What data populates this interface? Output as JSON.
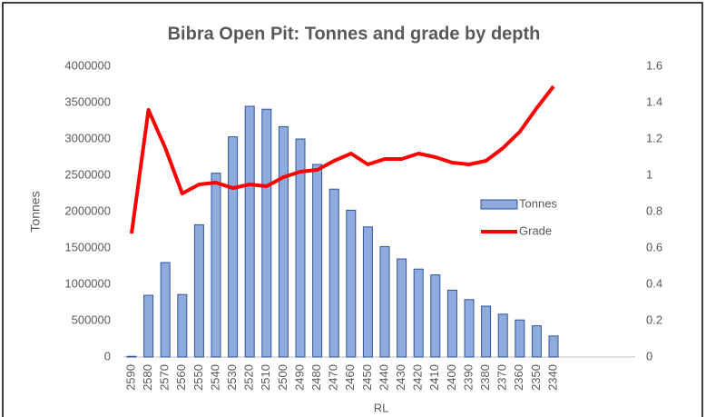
{
  "chart_data": {
    "type": "bar-line",
    "title": "Bibra Open Pit: Tonnes and grade by depth",
    "x_label": "RL",
    "y_label": "Tonnes",
    "categories": [
      "2590",
      "2580",
      "2570",
      "2560",
      "2550",
      "2540",
      "2530",
      "2520",
      "2510",
      "2500",
      "2490",
      "2480",
      "2470",
      "2460",
      "2450",
      "2440",
      "2430",
      "2420",
      "2410",
      "2400",
      "2390",
      "2380",
      "2370",
      "2360",
      "2350",
      "2340"
    ],
    "series": [
      {
        "name": "Tonnes",
        "type": "bar",
        "color": "#8faadc",
        "border": "#2f5597",
        "values": [
          10000,
          850000,
          1300000,
          860000,
          1820000,
          2530000,
          3030000,
          3450000,
          3410000,
          3170000,
          3000000,
          2650000,
          2310000,
          2020000,
          1790000,
          1520000,
          1350000,
          1210000,
          1130000,
          920000,
          790000,
          700000,
          590000,
          510000,
          430000,
          290000
        ]
      },
      {
        "name": "Grade",
        "type": "line",
        "color": "#ff0000",
        "axis": "y2",
        "values": [
          0.68,
          1.36,
          1.15,
          0.9,
          0.95,
          0.96,
          0.93,
          0.95,
          0.94,
          0.99,
          1.02,
          1.03,
          1.08,
          1.12,
          1.06,
          1.09,
          1.09,
          1.12,
          1.1,
          1.07,
          1.06,
          1.08,
          1.15,
          1.24,
          1.37,
          1.49
        ]
      }
    ],
    "ylim": [
      0,
      4000000
    ],
    "yticks": [
      0,
      500000,
      1000000,
      1500000,
      2000000,
      2500000,
      3000000,
      3500000,
      4000000
    ],
    "y2lim": [
      0,
      1.6
    ],
    "y2ticks": [
      0,
      0.2,
      0.4,
      0.6,
      0.8,
      1,
      1.2,
      1.4,
      1.6
    ],
    "legend": "right",
    "grid": false
  }
}
